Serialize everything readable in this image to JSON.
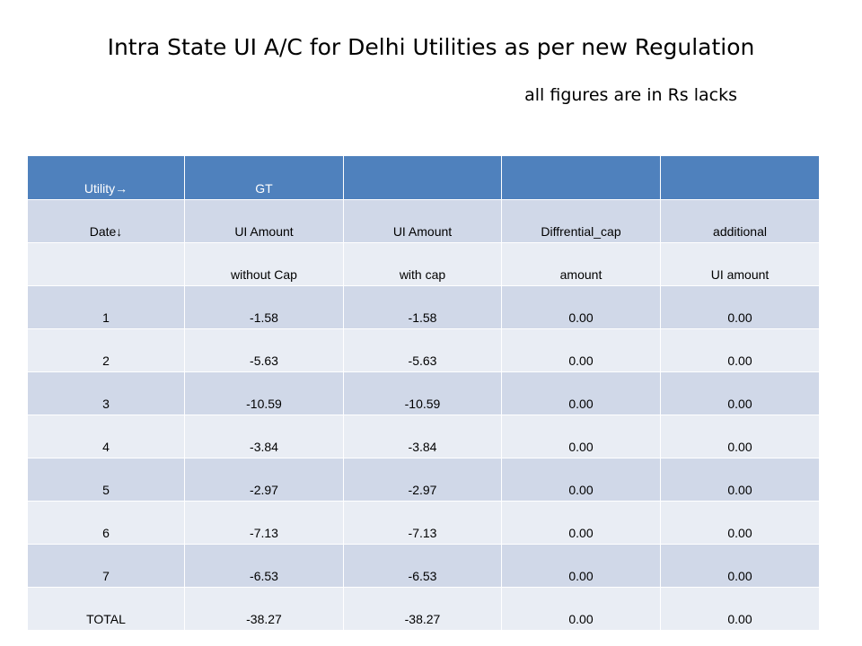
{
  "title": "Intra State UI A/C for Delhi Utilities as per new Regulation",
  "subtitle": "all figures are in Rs lacks",
  "table": {
    "header": [
      "Utility→",
      "GT",
      "",
      "",
      ""
    ],
    "subheader1": [
      "Date↓",
      "UI Amount",
      "UI Amount",
      "Diffrential_cap",
      "additional"
    ],
    "subheader2": [
      "",
      "without Cap",
      "with cap",
      "amount",
      "UI amount"
    ],
    "rows": [
      [
        "1",
        "-1.58",
        "-1.58",
        "0.00",
        "0.00"
      ],
      [
        "2",
        "-5.63",
        "-5.63",
        "0.00",
        "0.00"
      ],
      [
        "3",
        "-10.59",
        "-10.59",
        "0.00",
        "0.00"
      ],
      [
        "4",
        "-3.84",
        "-3.84",
        "0.00",
        "0.00"
      ],
      [
        "5",
        "-2.97",
        "-2.97",
        "0.00",
        "0.00"
      ],
      [
        "6",
        "-7.13",
        "-7.13",
        "0.00",
        "0.00"
      ],
      [
        "7",
        "-6.53",
        "-6.53",
        "0.00",
        "0.00"
      ]
    ],
    "total": [
      "TOTAL",
      "-38.27",
      "-38.27",
      "0.00",
      "0.00"
    ]
  },
  "colors": {
    "header_bg": "#4f81bd",
    "band_dark": "#d0d8e8",
    "band_light": "#e9edf4"
  }
}
